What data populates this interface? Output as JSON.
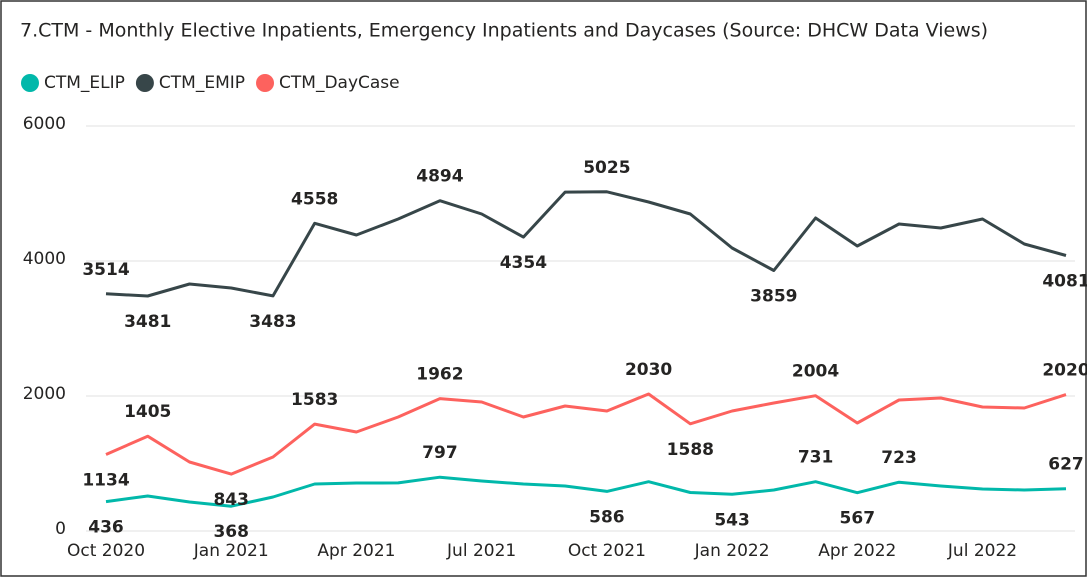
{
  "chart_data": {
    "type": "line",
    "title": "7.CTM - Monthly Elective Inpatients, Emergency Inpatients and Daycases (Source: DHCW Data Views)",
    "categories": [
      "Oct 2020",
      null,
      null,
      "Jan 2021",
      null,
      null,
      "Apr 2021",
      null,
      null,
      "Jul 2021",
      null,
      null,
      "Oct 2021",
      null,
      null,
      "Jan 2022",
      null,
      null,
      "Apr 2022",
      null,
      null,
      "Jul 2022",
      null,
      null
    ],
    "ylim": [
      0,
      6000
    ],
    "yticks": [
      0,
      2000,
      4000,
      6000
    ],
    "grid": true,
    "legend": "top-left",
    "series": [
      {
        "name": "CTM_ELIP",
        "color": "#01b8aa",
        "values": [
          436,
          519,
          430,
          368,
          504,
          696,
          711,
          713,
          797,
          741,
          696,
          667,
          586,
          730,
          570,
          543,
          607,
          731,
          567,
          723,
          667,
          622,
          607,
          627
        ],
        "value_labels": [
          "436",
          null,
          null,
          "368",
          null,
          null,
          null,
          null,
          "797",
          null,
          null,
          null,
          "586",
          null,
          null,
          "543",
          null,
          "731",
          "567",
          "723",
          null,
          null,
          null,
          "627"
        ]
      },
      {
        "name": "CTM_EMIP",
        "color": "#374649",
        "values": [
          3514,
          3481,
          3660,
          3600,
          3483,
          4558,
          4385,
          4622,
          4894,
          4696,
          4354,
          5020,
          5025,
          4874,
          4696,
          4193,
          3859,
          4637,
          4222,
          4548,
          4489,
          4622,
          4252,
          4081
        ],
        "value_labels": [
          "3514",
          "3481",
          null,
          null,
          "3483",
          "4558",
          null,
          null,
          "4894",
          null,
          "4354",
          null,
          "5025",
          null,
          null,
          null,
          "3859",
          null,
          null,
          null,
          null,
          null,
          null,
          "4081"
        ]
      },
      {
        "name": "CTM_DayCase",
        "color": "#fd625e",
        "values": [
          1134,
          1405,
          1022,
          843,
          1096,
          1583,
          1467,
          1689,
          1962,
          1911,
          1689,
          1852,
          1778,
          2030,
          1588,
          1778,
          1896,
          2004,
          1600,
          1941,
          1970,
          1837,
          1822,
          2020
        ],
        "value_labels": [
          "1134",
          "1405",
          null,
          "843",
          null,
          "1583",
          null,
          null,
          "1962",
          null,
          null,
          null,
          null,
          "2030",
          "1588",
          null,
          null,
          "2004",
          null,
          null,
          null,
          null,
          null,
          "2020"
        ]
      }
    ]
  }
}
